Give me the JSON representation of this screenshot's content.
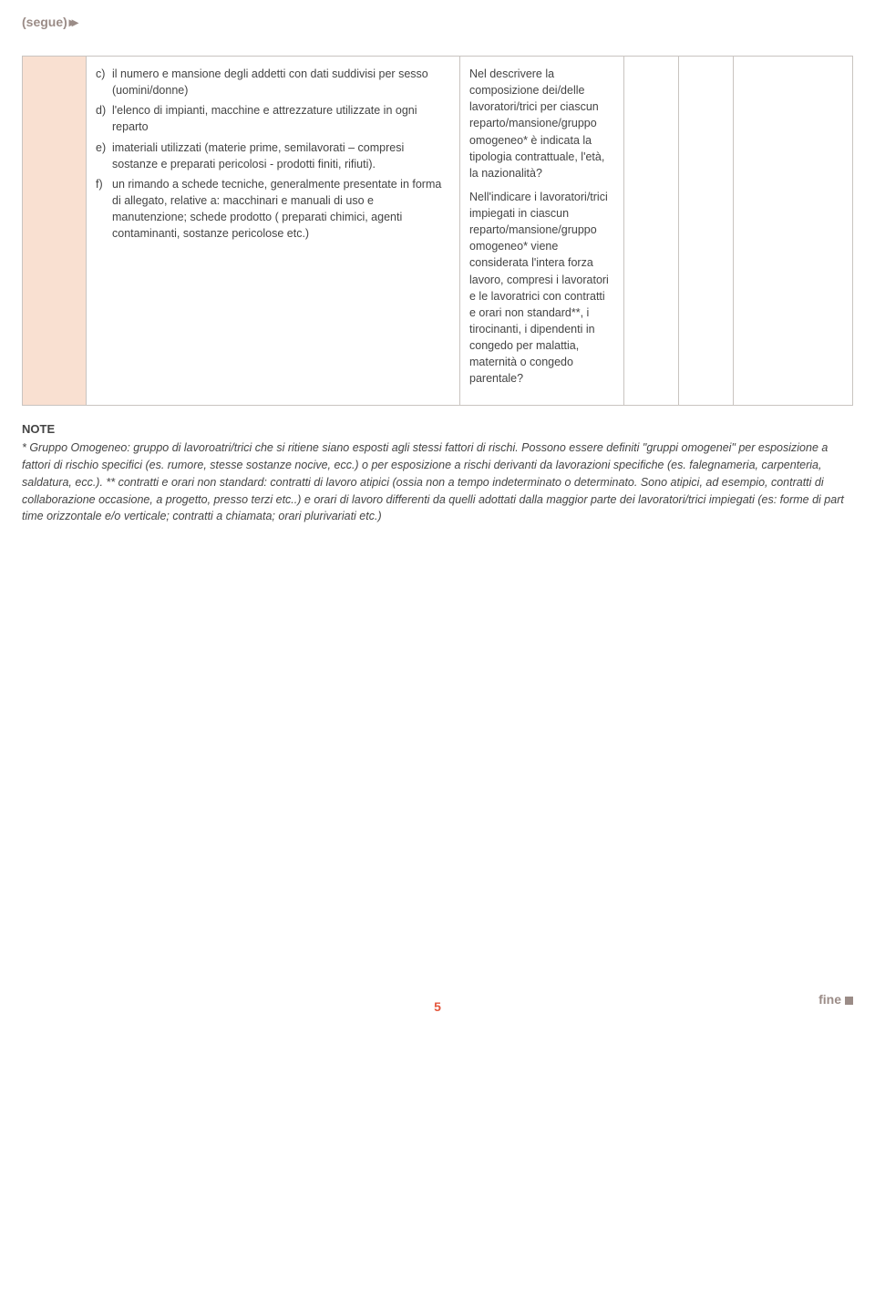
{
  "header": {
    "segue": "(segue)"
  },
  "table": {
    "col1": {
      "items": [
        {
          "label": "c)",
          "text": "il numero e mansione degli addetti con dati suddivisi per sesso (uomini/donne)"
        },
        {
          "label": "d)",
          "text": "l'elenco di impianti, macchine e attrezzature utilizzate in ogni reparto"
        },
        {
          "label": "e)",
          "text": "imateriali utilizzati (materie prime, semilavorati – compresi sostanze e preparati pericolosi - prodotti finiti, rifiuti)."
        },
        {
          "label": "f)",
          "text": "un rimando a schede tecniche, generalmente presentate in forma di allegato, relative a: macchinari e manuali di uso e manutenzione; schede prodotto ( preparati chimici, agenti contaminanti, sostanze pericolose etc.)"
        }
      ]
    },
    "col2": {
      "p1": "Nel descrivere la composizione dei/delle lavoratori/trici per ciascun reparto/mansione/gruppo omogeneo* è indicata la tipologia contrattuale, l'età, la nazionalità?",
      "p2": "Nell'indicare i lavoratori/trici impiegati in ciascun reparto/mansione/gruppo omogeneo* viene considerata l'intera forza lavoro, compresi i lavoratori e le lavoratrici con contratti e orari non standard**, i tirocinanti, i dipendenti in congedo per malattia, maternità o congedo parentale?"
    }
  },
  "note": {
    "title": "NOTE",
    "body": "* Gruppo Omogeneo: gruppo di lavoroatri/trici che si ritiene siano esposti agli stessi fattori di rischi. Possono essere definiti \"gruppi omogenei\" per esposizione a fattori di rischio specifici (es. rumore, stesse sostanze nocive, ecc.) o per esposizione a rischi derivanti da lavorazioni specifiche (es. falegnameria, carpenteria, saldatura, ecc.).\n** contratti e orari non standard: contratti di lavoro atipici (ossia non a tempo indeterminato o determinato. Sono atipici, ad esempio, contratti di collaborazione occasione, a progetto, presso terzi etc..) e orari di lavoro differenti da quelli adottati dalla maggior parte dei lavoratori/trici impiegati (es: forme di part time orizzontale e/o verticale; contratti a chiamata; orari plurivariati etc.)"
  },
  "footer": {
    "page": "5",
    "fine": "fine"
  },
  "style": {
    "accent_color": "#e4573d",
    "muted_color": "#9b8c87",
    "border_color": "#c9c4c0",
    "leftcol_bg": "#f9e0d1"
  }
}
